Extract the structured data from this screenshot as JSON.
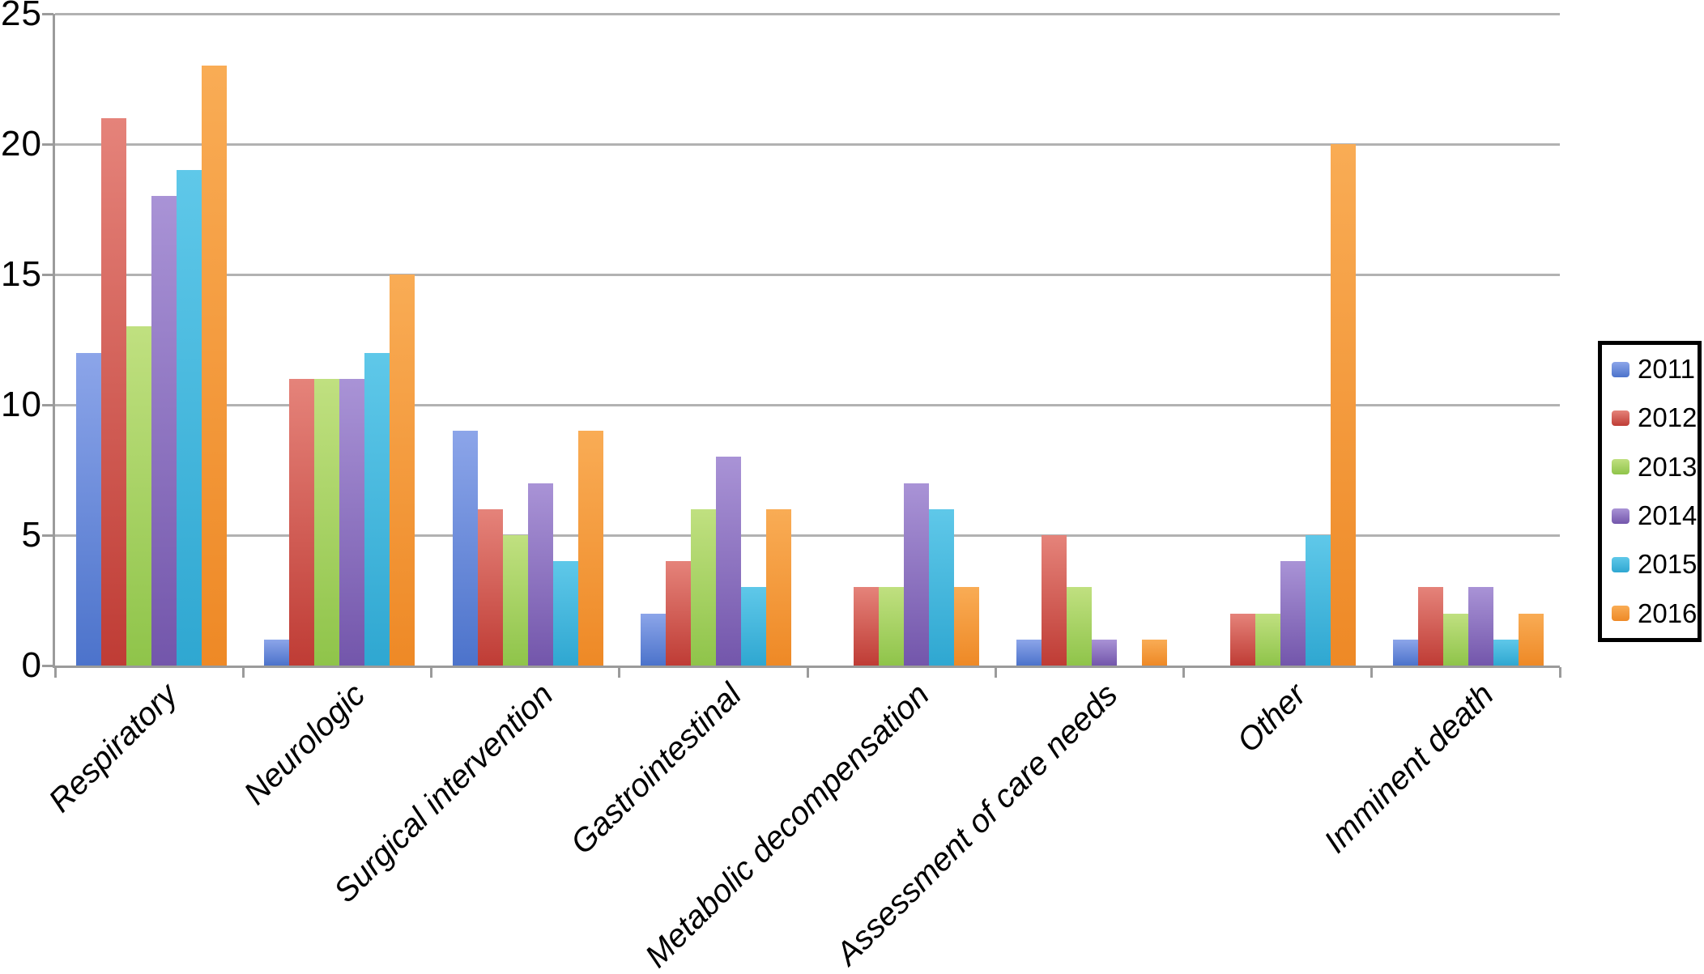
{
  "chart_data": {
    "type": "bar",
    "title": "",
    "xlabel": "",
    "ylabel": "",
    "categories": [
      "Respiratory",
      "Neurologic",
      "Surgical intervention",
      "Gastrointestinal",
      "Metabolic decompensation",
      "Assessment of care needs",
      "Other",
      "Imminent death"
    ],
    "series": [
      {
        "name": "2011",
        "color_light": "#8ca5e9",
        "color_dark": "#4c73cb",
        "values": [
          12,
          1,
          9,
          2,
          0,
          1,
          0,
          1
        ]
      },
      {
        "name": "2012",
        "color_light": "#e5837a",
        "color_dark": "#bf3c35",
        "values": [
          21,
          11,
          6,
          4,
          3,
          5,
          2,
          3
        ]
      },
      {
        "name": "2013",
        "color_light": "#c0e080",
        "color_dark": "#8fc44a",
        "values": [
          13,
          11,
          5,
          6,
          3,
          3,
          2,
          2
        ]
      },
      {
        "name": "2014",
        "color_light": "#a993d6",
        "color_dark": "#7356ab",
        "values": [
          18,
          11,
          7,
          8,
          7,
          1,
          4,
          3
        ]
      },
      {
        "name": "2015",
        "color_light": "#5fc8e9",
        "color_dark": "#2fa7d1",
        "values": [
          19,
          12,
          4,
          3,
          6,
          0,
          5,
          1
        ]
      },
      {
        "name": "2016",
        "color_light": "#f9ac55",
        "color_dark": "#ee8926",
        "values": [
          23,
          15,
          9,
          6,
          3,
          1,
          20,
          2
        ]
      }
    ],
    "y_ticks": [
      0,
      5,
      10,
      15,
      20,
      25
    ],
    "ylim": [
      0,
      25
    ],
    "grid": true,
    "legend_position": "right",
    "legend_labels": [
      "2011",
      "2012",
      "2013",
      "2014",
      "2015",
      "2016"
    ]
  },
  "colors": {
    "background": "#ffffff",
    "gridline": "#b2b2b2",
    "axis": "#9b9b9b",
    "text": "#000000",
    "legend_border": "#000000"
  }
}
